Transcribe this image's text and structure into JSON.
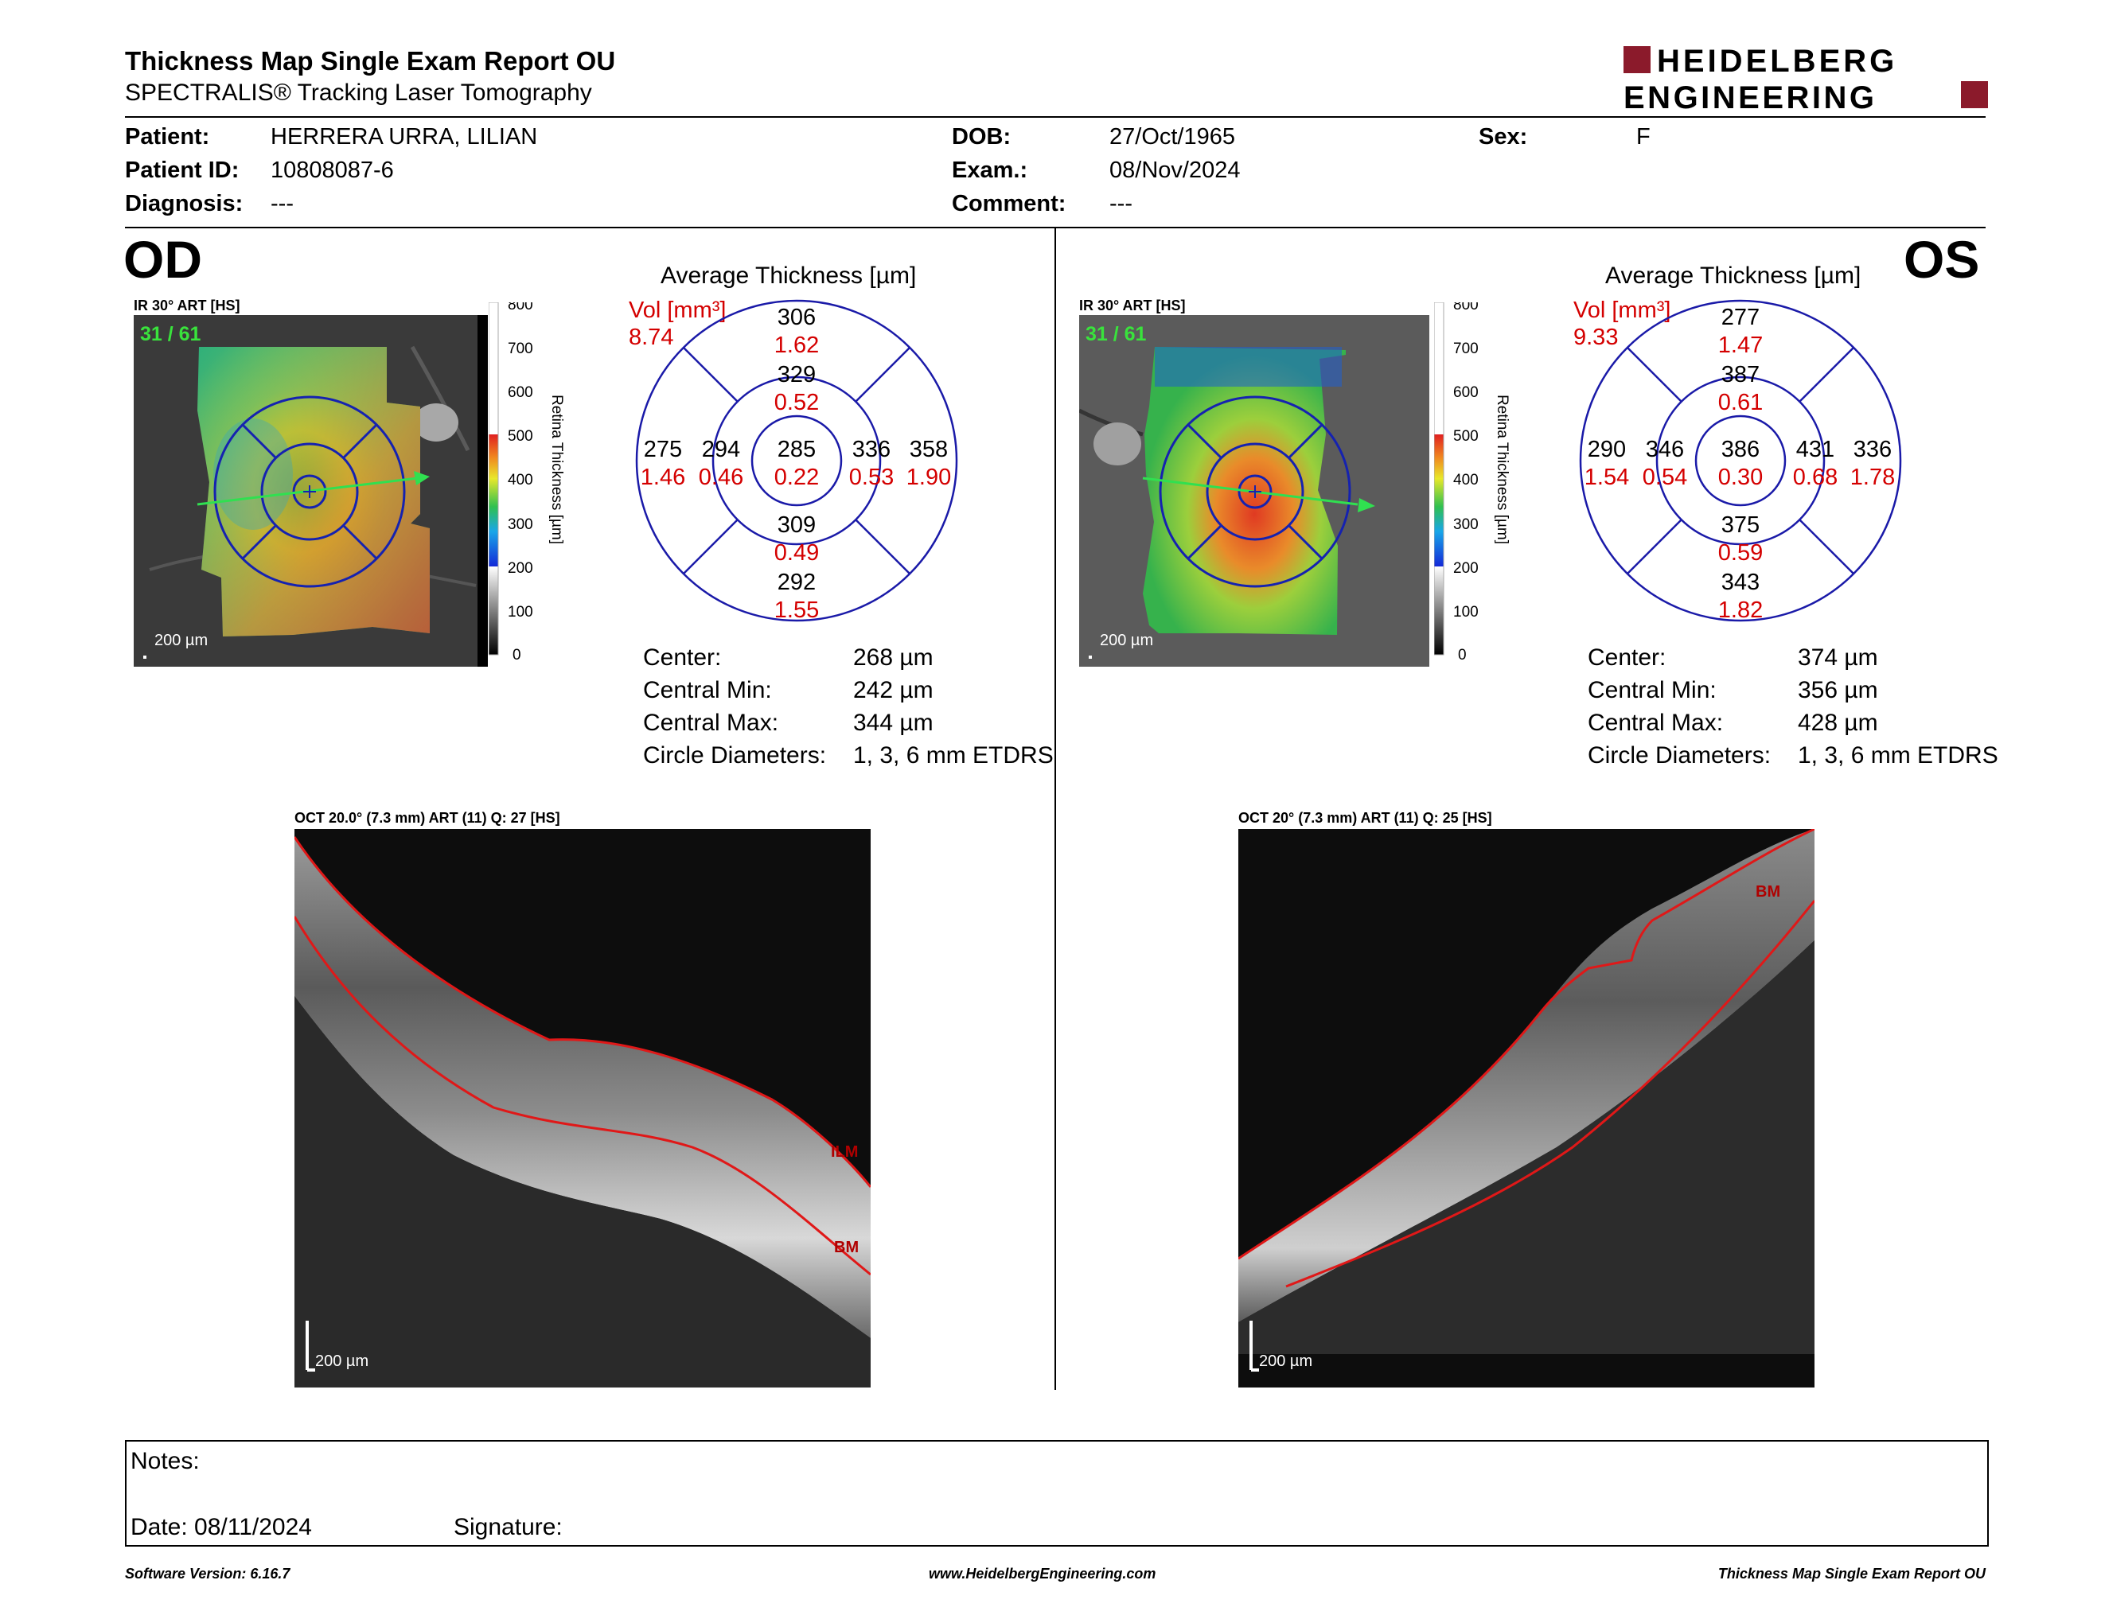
{
  "report": {
    "title": "Thickness Map Single Exam Report OU",
    "subtitle": "SPECTRALIS® Tracking Laser Tomography",
    "brand_line1": "HEIDELBERG",
    "brand_line2": "ENGINEERING",
    "brand_color": "#8b1a2b"
  },
  "patient": {
    "patient_label": "Patient:",
    "patient_value": "HERRERA URRA, LILIAN",
    "id_label": "Patient ID:",
    "id_value": "10808087-6",
    "diagnosis_label": "Diagnosis:",
    "diagnosis_value": "---",
    "dob_label": "DOB:",
    "dob_value": "27/Oct/1965",
    "exam_label": "Exam.:",
    "exam_value": "08/Nov/2024",
    "comment_label": "Comment:",
    "comment_value": "---",
    "sex_label": "Sex:",
    "sex_value": "F"
  },
  "od": {
    "eye_label": "OD",
    "ir_caption": "IR 30° ART [HS]",
    "frame_counter": "31 / 61",
    "scale_label": "200 µm",
    "colorbar_title": "Retina Thickness [µm]",
    "colorbar_ticks": [
      "800",
      "700",
      "600",
      "500",
      "400",
      "300",
      "200",
      "100",
      "0"
    ],
    "chart_title": "Average Thickness [µm]",
    "vol_label": "Vol [mm³]",
    "vol_value": "8.74",
    "sectors": {
      "outer_superior": {
        "t": "306",
        "v": "1.62"
      },
      "inner_superior": {
        "t": "329",
        "v": "0.52"
      },
      "outer_temporal": {
        "t": "275",
        "v": "1.46"
      },
      "inner_temporal": {
        "t": "294",
        "v": "0.46"
      },
      "center": {
        "t": "285",
        "v": "0.22"
      },
      "inner_nasal": {
        "t": "336",
        "v": "0.53"
      },
      "outer_nasal": {
        "t": "358",
        "v": "1.90"
      },
      "inner_inferior": {
        "t": "309",
        "v": "0.49"
      },
      "outer_inferior": {
        "t": "292",
        "v": "1.55"
      }
    },
    "stats": [
      {
        "label": "Center:",
        "value": "268 µm"
      },
      {
        "label": "Central Min:",
        "value": "242 µm"
      },
      {
        "label": "Central Max:",
        "value": "344 µm"
      },
      {
        "label": "Circle Diameters:",
        "value": "1, 3, 6 mm ETDRS"
      }
    ],
    "oct_caption": "OCT 20.0° (7.3 mm) ART (11) Q: 27 [HS]",
    "oct_scale": "200 µm",
    "oct_labels": [
      "ILM",
      "BM"
    ]
  },
  "os": {
    "eye_label": "OS",
    "ir_caption": "IR 30° ART [HS]",
    "frame_counter": "31 / 61",
    "scale_label": "200 µm",
    "colorbar_title": "Retina Thickness [µm]",
    "colorbar_ticks": [
      "800",
      "700",
      "600",
      "500",
      "400",
      "300",
      "200",
      "100",
      "0"
    ],
    "chart_title": "Average Thickness [µm]",
    "vol_label": "Vol [mm³]",
    "vol_value": "9.33",
    "sectors": {
      "outer_superior": {
        "t": "277",
        "v": "1.47"
      },
      "inner_superior": {
        "t": "387",
        "v": "0.61"
      },
      "outer_temporal": {
        "t": "290",
        "v": "1.54"
      },
      "inner_temporal": {
        "t": "346",
        "v": "0.54"
      },
      "center": {
        "t": "386",
        "v": "0.30"
      },
      "inner_nasal": {
        "t": "431",
        "v": "0.68"
      },
      "outer_nasal": {
        "t": "336",
        "v": "1.78"
      },
      "inner_inferior": {
        "t": "375",
        "v": "0.59"
      },
      "outer_inferior": {
        "t": "343",
        "v": "1.82"
      }
    },
    "stats": [
      {
        "label": "Center:",
        "value": "374 µm"
      },
      {
        "label": "Central Min:",
        "value": "356 µm"
      },
      {
        "label": "Central Max:",
        "value": "428 µm"
      },
      {
        "label": "Circle Diameters:",
        "value": "1, 3, 6 mm ETDRS"
      }
    ],
    "oct_caption": "OCT 20° (7.3 mm) ART (11) Q: 25 [HS]",
    "oct_scale": "200 µm",
    "oct_labels": [
      "BM"
    ]
  },
  "notes": {
    "notes_label": "Notes:",
    "date_label": "Date: 08/11/2024",
    "signature_label": "Signature:"
  },
  "footer": {
    "software": "Software Version: 6.16.7",
    "url": "www.HeidelbergEngineering.com",
    "report_name": "Thickness Map Single Exam Report OU"
  }
}
